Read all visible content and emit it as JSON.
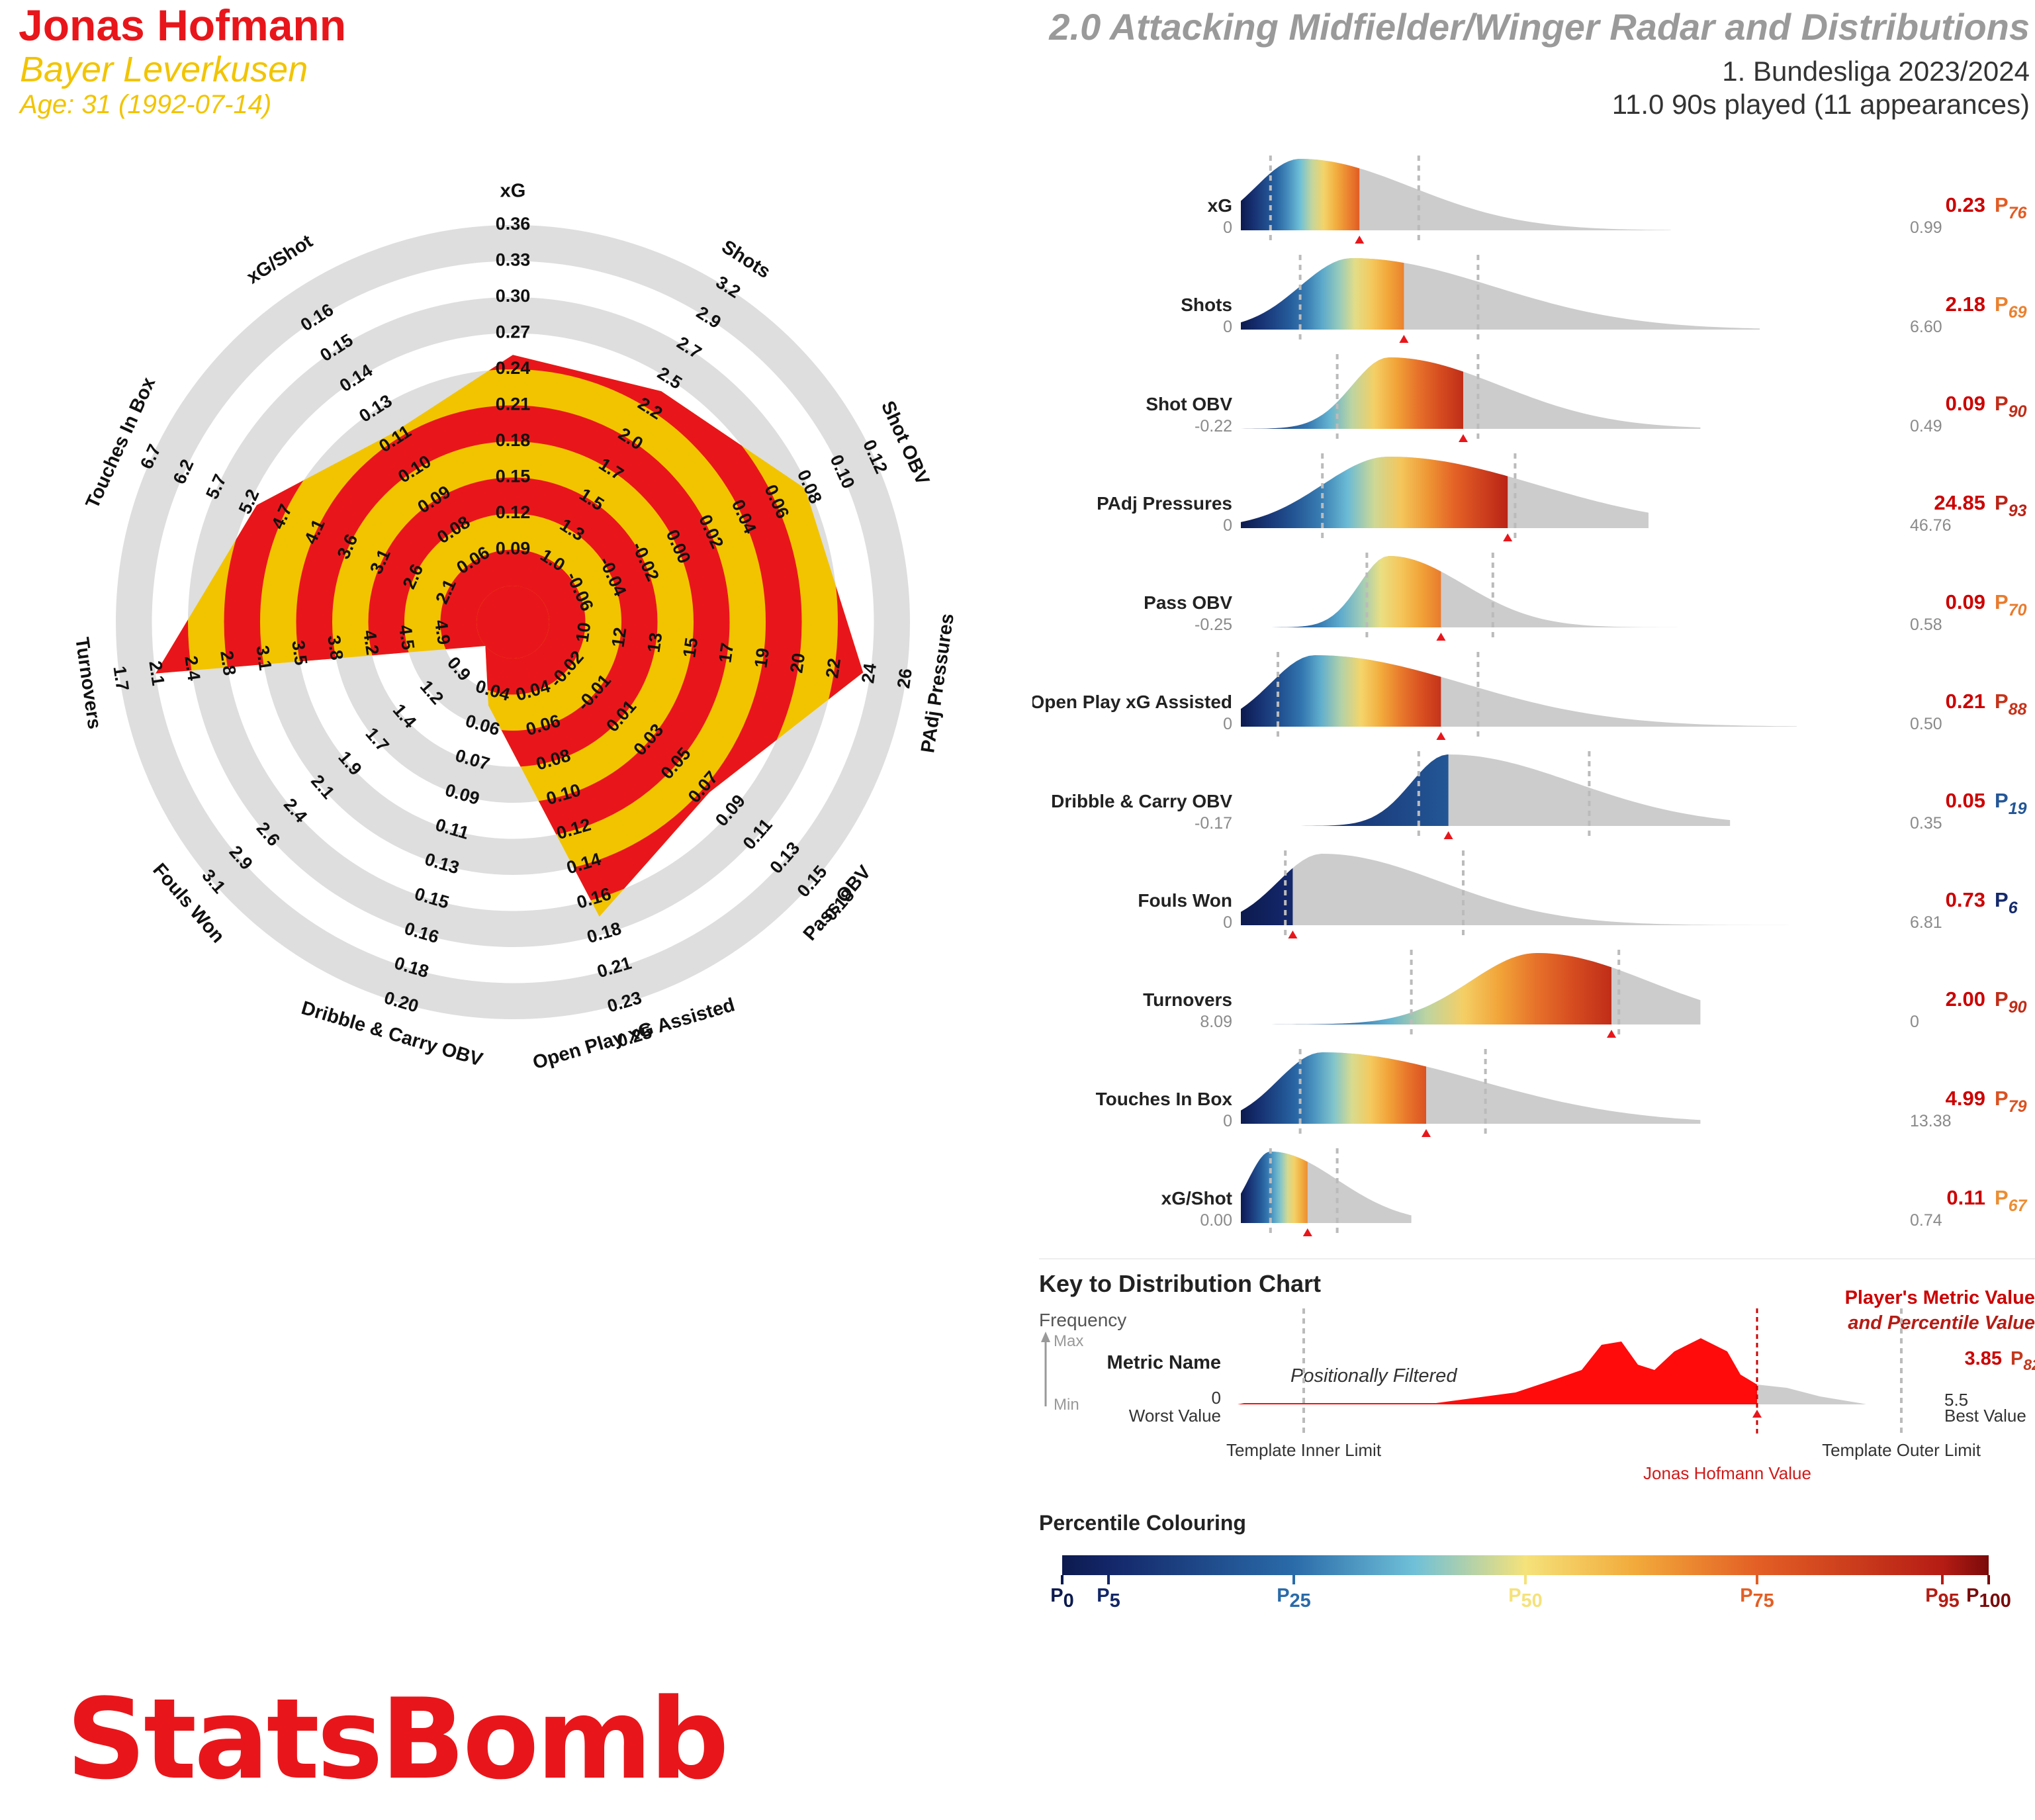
{
  "header": {
    "player_name": "Jonas Hofmann",
    "team": "Bayer Leverkusen",
    "age": "Age: 31 (1992-07-14)",
    "title": "2.0 Attacking Midfielder/Winger Radar and Distributions",
    "competition": "1. Bundesliga 2023/2024",
    "minutes": "11.0 90s played (11 appearances)"
  },
  "colors": {
    "red": "#e8161b",
    "yellow": "#f2c400",
    "ring_grey": "#dedede",
    "dist_grey": "#cccccc",
    "value_red": "#cc0000",
    "muted": "#8a8a8a"
  },
  "chart_data": [
    {
      "type": "radar",
      "title": "Radar",
      "rings": 5,
      "metrics": [
        {
          "name": "xG",
          "ticks": [
            "0.09",
            "0.12",
            "0.15",
            "0.18",
            "0.21",
            "0.24",
            "0.27",
            "0.30",
            "0.33",
            "0.36"
          ],
          "value": 0.23
        },
        {
          "name": "Shots",
          "ticks": [
            "1.0",
            "1.3",
            "1.5",
            "1.7",
            "2.0",
            "2.2",
            "2.5",
            "2.7",
            "2.9",
            "3.2"
          ],
          "value": 2.18
        },
        {
          "name": "Shot OBV",
          "ticks": [
            "-0.06",
            "-0.04",
            "-0.02",
            "0.00",
            "0.02",
            "0.04",
            "0.06",
            "0.08",
            "0.10",
            "0.12"
          ],
          "value": 0.09
        },
        {
          "name": "PAdj Pressures",
          "ticks": [
            "10",
            "12",
            "13",
            "15",
            "17",
            "19",
            "20",
            "22",
            "24",
            "26"
          ],
          "value": 24.85
        },
        {
          "name": "Pass OBV",
          "ticks": [
            "-0.02",
            "-0.01",
            "0.01",
            "0.03",
            "0.05",
            "0.07",
            "0.09",
            "0.11",
            "0.13",
            "0.15",
            "0.18"
          ],
          "value": 0.09
        },
        {
          "name": "Open Play xG Assisted",
          "ticks": [
            "0.04",
            "0.06",
            "0.08",
            "0.10",
            "0.12",
            "0.14",
            "0.16",
            "0.18",
            "0.21",
            "0.23",
            "0.25"
          ],
          "value": 0.21
        },
        {
          "name": "Dribble & Carry OBV",
          "ticks": [
            "0.04",
            "0.06",
            "0.07",
            "0.09",
            "0.11",
            "0.13",
            "0.15",
            "0.16",
            "0.18",
            "0.20"
          ],
          "value": 0.05
        },
        {
          "name": "Fouls Won",
          "ticks": [
            "0.9",
            "1.2",
            "1.4",
            "1.7",
            "1.9",
            "2.1",
            "2.4",
            "2.6",
            "2.9",
            "3.1"
          ],
          "value": 0.73
        },
        {
          "name": "Turnovers",
          "ticks": [
            "4.9",
            "4.5",
            "4.2",
            "3.8",
            "3.5",
            "3.1",
            "2.8",
            "2.4",
            "2.1",
            "1.7"
          ],
          "value": 2.0
        },
        {
          "name": "Touches In Box",
          "ticks": [
            "2.1",
            "2.6",
            "3.1",
            "3.6",
            "4.1",
            "4.7",
            "5.2",
            "5.7",
            "6.2",
            "6.7"
          ],
          "value": 4.99
        },
        {
          "name": "xG/Shot",
          "ticks": [
            "0.06",
            "0.08",
            "0.09",
            "0.10",
            "0.11",
            "0.13",
            "0.14",
            "0.15",
            "0.16"
          ],
          "value": 0.11
        }
      ],
      "fraction_of_radius": [
        0.64,
        0.66,
        0.79,
        0.88,
        0.62,
        0.75,
        0.14,
        0.0,
        0.9,
        0.68,
        0.52
      ]
    },
    {
      "type": "area",
      "title": "Distributions",
      "rows": [
        {
          "name": "xG",
          "min_label": "0",
          "max_label": "0.99",
          "value": "0.23",
          "percentile": "76"
        },
        {
          "name": "Shots",
          "min_label": "0",
          "max_label": "6.60",
          "value": "2.18",
          "percentile": "69"
        },
        {
          "name": "Shot OBV",
          "min_label": "-0.22",
          "max_label": "0.49",
          "value": "0.09",
          "percentile": "90"
        },
        {
          "name": "PAdj Pressures",
          "min_label": "0",
          "max_label": "46.76",
          "value": "24.85",
          "percentile": "93"
        },
        {
          "name": "Pass OBV",
          "min_label": "-0.25",
          "max_label": "0.58",
          "value": "0.09",
          "percentile": "70"
        },
        {
          "name": "Open Play xG Assisted",
          "min_label": "0",
          "max_label": "0.50",
          "value": "0.21",
          "percentile": "88"
        },
        {
          "name": "Dribble & Carry OBV",
          "min_label": "-0.17",
          "max_label": "0.35",
          "value": "0.05",
          "percentile": "19"
        },
        {
          "name": "Fouls Won",
          "min_label": "0",
          "max_label": "6.81",
          "value": "0.73",
          "percentile": "6"
        },
        {
          "name": "Turnovers",
          "min_label": "8.09",
          "max_label": "0",
          "value": "2.00",
          "percentile": "90"
        },
        {
          "name": "Touches In Box",
          "min_label": "0",
          "max_label": "13.38",
          "value": "4.99",
          "percentile": "79"
        },
        {
          "name": "xG/Shot",
          "min_label": "0.00",
          "max_label": "0.74",
          "value": "0.11",
          "percentile": "67"
        }
      ],
      "shape": [
        {
          "mu": 0.08,
          "sigma": 0.06,
          "skew": 0.09,
          "marker": 0.16,
          "inner": 0.04,
          "outer": 0.24,
          "xmax": 0.58
        },
        {
          "mu": 0.15,
          "sigma": 0.07,
          "skew": 0.12,
          "marker": 0.22,
          "inner": 0.08,
          "outer": 0.32,
          "xmax": 0.7
        },
        {
          "mu": 0.2,
          "sigma": 0.05,
          "skew": 0.1,
          "marker": 0.3,
          "inner": 0.13,
          "outer": 0.32,
          "xmax": 0.62
        },
        {
          "mu": 0.2,
          "sigma": 0.09,
          "skew": 0.11,
          "marker": 0.36,
          "inner": 0.11,
          "outer": 0.37,
          "xmax": 0.55
        },
        {
          "mu": 0.2,
          "sigma": 0.04,
          "skew": 0.06,
          "marker": 0.27,
          "inner": 0.17,
          "outer": 0.34,
          "xmax": 0.62
        },
        {
          "mu": 0.1,
          "sigma": 0.06,
          "skew": 0.14,
          "marker": 0.27,
          "inner": 0.05,
          "outer": 0.32,
          "xmax": 0.75
        },
        {
          "mu": 0.28,
          "sigma": 0.05,
          "skew": 0.12,
          "marker": 0.28,
          "inner": 0.24,
          "outer": 0.47,
          "xmax": 0.66
        },
        {
          "mu": 0.11,
          "sigma": 0.06,
          "skew": 0.1,
          "marker": 0.07,
          "inner": 0.06,
          "outer": 0.3,
          "xmax": 0.75
        },
        {
          "mu": 0.4,
          "sigma": 0.09,
          "skew": 0.06,
          "marker": 0.5,
          "inner": 0.23,
          "outer": 0.51,
          "xmax": 0.62
        },
        {
          "mu": 0.11,
          "sigma": 0.06,
          "skew": 0.15,
          "marker": 0.25,
          "inner": 0.08,
          "outer": 0.33,
          "xmax": 0.62
        },
        {
          "mu": 0.04,
          "sigma": 0.03,
          "skew": 0.06,
          "marker": 0.09,
          "inner": 0.04,
          "outer": 0.13,
          "xmax": 0.23
        }
      ]
    }
  ],
  "key": {
    "title": "Key to Distribution Chart",
    "frequency": "Frequency",
    "max": "Max",
    "min": "Min",
    "metric_name": "Metric Name",
    "positionally_filtered": "Positionally Filtered",
    "player_metric_line1": "Player's Metric Value",
    "player_metric_line2": "and Percentile Value",
    "example_value": "3.85",
    "example_percentile": "82",
    "worst_value_num": "0",
    "worst_value": "Worst Value",
    "best_value_num": "5.5",
    "best_value": "Best Value",
    "inner_limit": "Template Inner Limit",
    "outer_limit": "Template Outer Limit",
    "player_value_label": "Jonas Hofmann Value"
  },
  "percentile_key": {
    "title": "Percentile Colouring",
    "ticks": [
      "0",
      "5",
      "25",
      "50",
      "75",
      "95",
      "100"
    ],
    "prefix": "P"
  },
  "logo": "StatsBomb"
}
